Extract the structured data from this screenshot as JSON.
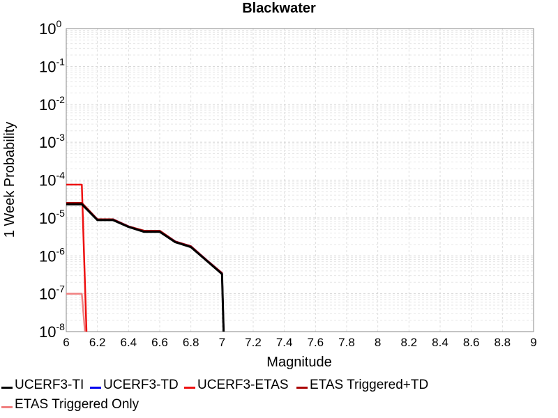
{
  "chart_data": {
    "type": "line",
    "title": "Blackwater",
    "xlabel": "Magnitude",
    "ylabel": "1 Week Probability",
    "xlim": [
      6,
      9
    ],
    "ylim": [
      1e-08,
      1
    ],
    "yscale": "log",
    "grid": true,
    "legend_position": "bottom",
    "x_ticks": [
      "6",
      "6.2",
      "6.4",
      "6.6",
      "6.8",
      "7",
      "7.2",
      "7.4",
      "7.6",
      "7.8",
      "8",
      "8.2",
      "8.4",
      "8.6",
      "8.8",
      "9"
    ],
    "y_tick_exponents": [
      "0",
      "-1",
      "-2",
      "-3",
      "-4",
      "-5",
      "-6",
      "-7",
      "-8"
    ],
    "y_tick_base": "10",
    "series": [
      {
        "name": "UCERF3-TI",
        "color": "#000000",
        "x": [
          6.0,
          6.1,
          6.2,
          6.3,
          6.4,
          6.5,
          6.6,
          6.7,
          6.8,
          6.9,
          7.0,
          7.01
        ],
        "y": [
          2.3e-05,
          2.3e-05,
          8.8e-06,
          8.8e-06,
          5.8e-06,
          4.3e-06,
          4.3e-06,
          2.3e-06,
          1.7e-06,
          7.5e-07,
          3.3e-07,
          1e-08
        ]
      },
      {
        "name": "UCERF3-TD",
        "color": "#0000ee",
        "x": [
          6.0,
          6.1,
          6.2,
          6.3,
          6.4,
          6.5,
          6.6,
          6.7,
          6.8,
          6.9,
          7.0,
          7.01
        ],
        "y": [
          2.4e-05,
          2.4e-05,
          9.2e-06,
          9.2e-06,
          6e-06,
          4.5e-06,
          4.5e-06,
          2.4e-06,
          1.8e-06,
          7.8e-07,
          3.5e-07,
          1e-08
        ]
      },
      {
        "name": "UCERF3-ETAS",
        "color": "#ee1111",
        "x": [
          6.0,
          6.1,
          6.13
        ],
        "y": [
          7.6e-05,
          7.6e-05,
          1e-08
        ]
      },
      {
        "name": "ETAS Triggered+TD",
        "color": "#aa0000",
        "x": [
          6.0,
          6.1,
          6.2,
          6.3,
          6.4,
          6.5,
          6.6,
          6.7,
          6.8,
          6.9,
          7.0,
          7.01
        ],
        "y": [
          2.5e-05,
          2.5e-05,
          9.2e-06,
          9.2e-06,
          6e-06,
          4.6e-06,
          4.6e-06,
          2.4e-06,
          1.8e-06,
          7.8e-07,
          3.5e-07,
          1e-08
        ]
      },
      {
        "name": "ETAS Triggered Only",
        "color": "#f08080",
        "x": [
          6.0,
          6.1,
          6.12
        ],
        "y": [
          1e-07,
          1e-07,
          1e-08
        ]
      }
    ]
  }
}
